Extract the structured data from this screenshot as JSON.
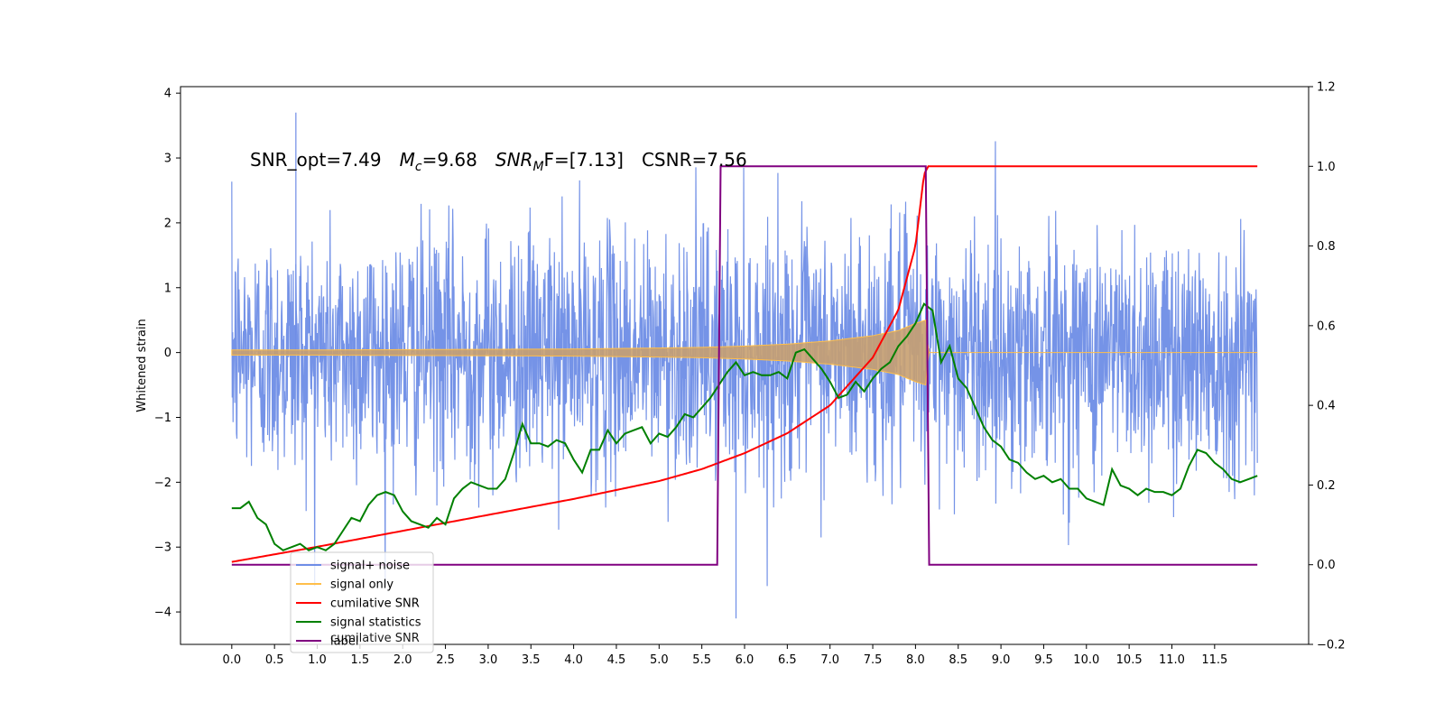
{
  "chart_data": {
    "type": "line",
    "title": "",
    "xlabel": "",
    "ylabel": "Whitened strain",
    "xlim": [
      -0.6,
      12.6
    ],
    "ylim_left": [
      -4.5,
      4.1
    ],
    "ylim_right": [
      -0.2,
      1.2
    ],
    "xticks": [
      "0.0",
      "0.5",
      "1.0",
      "1.5",
      "2.0",
      "2.5",
      "3.0",
      "3.5",
      "4.0",
      "4.5",
      "5.0",
      "5.5",
      "6.0",
      "6.5",
      "7.0",
      "7.5",
      "8.0",
      "8.5",
      "9.0",
      "9.5",
      "10.0",
      "10.5",
      "11.0",
      "11.5"
    ],
    "yticks_left": [
      "4",
      "3",
      "2",
      "1",
      "0",
      "−1",
      "−2",
      "−3",
      "−4"
    ],
    "yticks_right": [
      "1.2",
      "1.0",
      "0.8",
      "0.6",
      "0.4",
      "0.2",
      "0.0",
      "−0.2"
    ],
    "annotation": {
      "text_parts": [
        "SNR_opt=7.49",
        "M",
        "c",
        "=9.68",
        "SNR",
        "M",
        "F=[7.13]",
        "CSNR=7.56"
      ]
    },
    "legend": {
      "position": "lower-left",
      "entries": [
        {
          "label": "signal+ noise",
          "color": "#6e8de6"
        },
        {
          "label": "signal only",
          "color": "#ffbf4a"
        },
        {
          "label": "cumilative SNR",
          "color": "#ff0000"
        },
        {
          "label": "signal statistics",
          "color": "#008000"
        },
        {
          "label": "label",
          "color": "#800080"
        }
      ],
      "ghost_text": "cumilative SNR"
    },
    "series": [
      {
        "name": "signal+ noise",
        "axis": "left",
        "color": "#6e8de6",
        "description_range": {
          "x": [
            0.0,
            12.0
          ],
          "noise_std": 0.95,
          "peak": [
            3.7,
            -4.1
          ]
        }
      },
      {
        "name": "signal only",
        "axis": "left",
        "color": "#ffbf4a",
        "envelope": {
          "x": [
            0.0,
            1.0,
            2.0,
            3.0,
            4.0,
            5.0,
            5.5,
            6.0,
            6.5,
            7.0,
            7.5,
            7.8,
            8.0,
            8.12,
            8.15,
            12.0
          ],
          "amp": [
            0.04,
            0.04,
            0.045,
            0.05,
            0.055,
            0.07,
            0.08,
            0.1,
            0.13,
            0.18,
            0.26,
            0.34,
            0.45,
            0.5,
            0.0,
            0.0
          ]
        }
      },
      {
        "name": "cumilative SNR",
        "axis": "right",
        "color": "#ff0000",
        "x": [
          0.0,
          1.0,
          2.0,
          3.0,
          4.0,
          5.0,
          5.5,
          6.0,
          6.5,
          7.0,
          7.5,
          7.8,
          8.0,
          8.1,
          8.15,
          12.0
        ],
        "y": [
          0.007,
          0.045,
          0.085,
          0.125,
          0.165,
          0.21,
          0.24,
          0.28,
          0.33,
          0.4,
          0.52,
          0.64,
          0.8,
          0.98,
          1.0,
          1.0
        ]
      },
      {
        "name": "signal statistics",
        "axis": "left",
        "color": "#008000",
        "x": [
          0.0,
          0.1,
          0.2,
          0.3,
          0.4,
          0.5,
          0.6,
          0.7,
          0.8,
          0.9,
          1.0,
          1.1,
          1.2,
          1.3,
          1.4,
          1.5,
          1.6,
          1.7,
          1.8,
          1.9,
          2.0,
          2.1,
          2.2,
          2.3,
          2.4,
          2.5,
          2.6,
          2.7,
          2.8,
          2.9,
          3.0,
          3.1,
          3.2,
          3.3,
          3.4,
          3.5,
          3.6,
          3.7,
          3.8,
          3.9,
          4.0,
          4.1,
          4.2,
          4.3,
          4.4,
          4.5,
          4.6,
          4.7,
          4.8,
          4.9,
          5.0,
          5.1,
          5.2,
          5.3,
          5.4,
          5.5,
          5.6,
          5.7,
          5.8,
          5.9,
          6.0,
          6.1,
          6.2,
          6.3,
          6.4,
          6.5,
          6.6,
          6.7,
          6.8,
          6.9,
          7.0,
          7.1,
          7.2,
          7.3,
          7.4,
          7.5,
          7.6,
          7.7,
          7.8,
          7.9,
          8.0,
          8.1,
          8.2,
          8.3,
          8.4,
          8.5,
          8.6,
          8.7,
          8.8,
          8.9,
          9.0,
          9.1,
          9.2,
          9.3,
          9.4,
          9.5,
          9.6,
          9.7,
          9.8,
          9.9,
          10.0,
          10.1,
          10.2,
          10.3,
          10.4,
          10.5,
          10.6,
          10.7,
          10.8,
          10.9,
          11.0,
          11.1,
          11.2,
          11.3,
          11.4,
          11.5,
          11.6,
          11.7,
          11.8,
          11.9,
          12.0
        ],
        "y": [
          -2.4,
          -2.4,
          -2.3,
          -2.55,
          -2.65,
          -2.95,
          -3.05,
          -3.0,
          -2.95,
          -3.05,
          -3.0,
          -3.05,
          -2.95,
          -2.75,
          -2.55,
          -2.6,
          -2.35,
          -2.2,
          -2.15,
          -2.2,
          -2.45,
          -2.6,
          -2.65,
          -2.7,
          -2.55,
          -2.65,
          -2.25,
          -2.1,
          -2.0,
          -2.05,
          -2.1,
          -2.1,
          -1.95,
          -1.55,
          -1.1,
          -1.4,
          -1.4,
          -1.45,
          -1.35,
          -1.4,
          -1.65,
          -1.85,
          -1.5,
          -1.5,
          -1.2,
          -1.4,
          -1.25,
          -1.2,
          -1.15,
          -1.4,
          -1.25,
          -1.3,
          -1.15,
          -0.95,
          -1.0,
          -0.85,
          -0.7,
          -0.5,
          -0.3,
          -0.15,
          -0.35,
          -0.3,
          -0.35,
          -0.35,
          -0.3,
          -0.4,
          0.0,
          0.05,
          -0.1,
          -0.25,
          -0.45,
          -0.7,
          -0.65,
          -0.45,
          -0.6,
          -0.4,
          -0.25,
          -0.15,
          0.1,
          0.25,
          0.45,
          0.75,
          0.65,
          -0.15,
          0.1,
          -0.4,
          -0.55,
          -0.85,
          -1.15,
          -1.35,
          -1.45,
          -1.65,
          -1.7,
          -1.85,
          -1.95,
          -1.9,
          -2.0,
          -1.95,
          -2.1,
          -2.1,
          -2.25,
          -2.3,
          -2.35,
          -1.8,
          -2.05,
          -2.1,
          -2.2,
          -2.1,
          -2.15,
          -2.15,
          -2.2,
          -2.1,
          -1.75,
          -1.5,
          -1.55,
          -1.7,
          -1.8,
          -1.95,
          -2.0,
          -1.95,
          -1.9
        ]
      },
      {
        "name": "label",
        "axis": "right",
        "color": "#800080",
        "x": [
          0.0,
          5.68,
          5.72,
          8.12,
          8.16,
          12.0
        ],
        "y": [
          0.0,
          0.0,
          1.0,
          1.0,
          0.0,
          0.0
        ]
      }
    ]
  }
}
